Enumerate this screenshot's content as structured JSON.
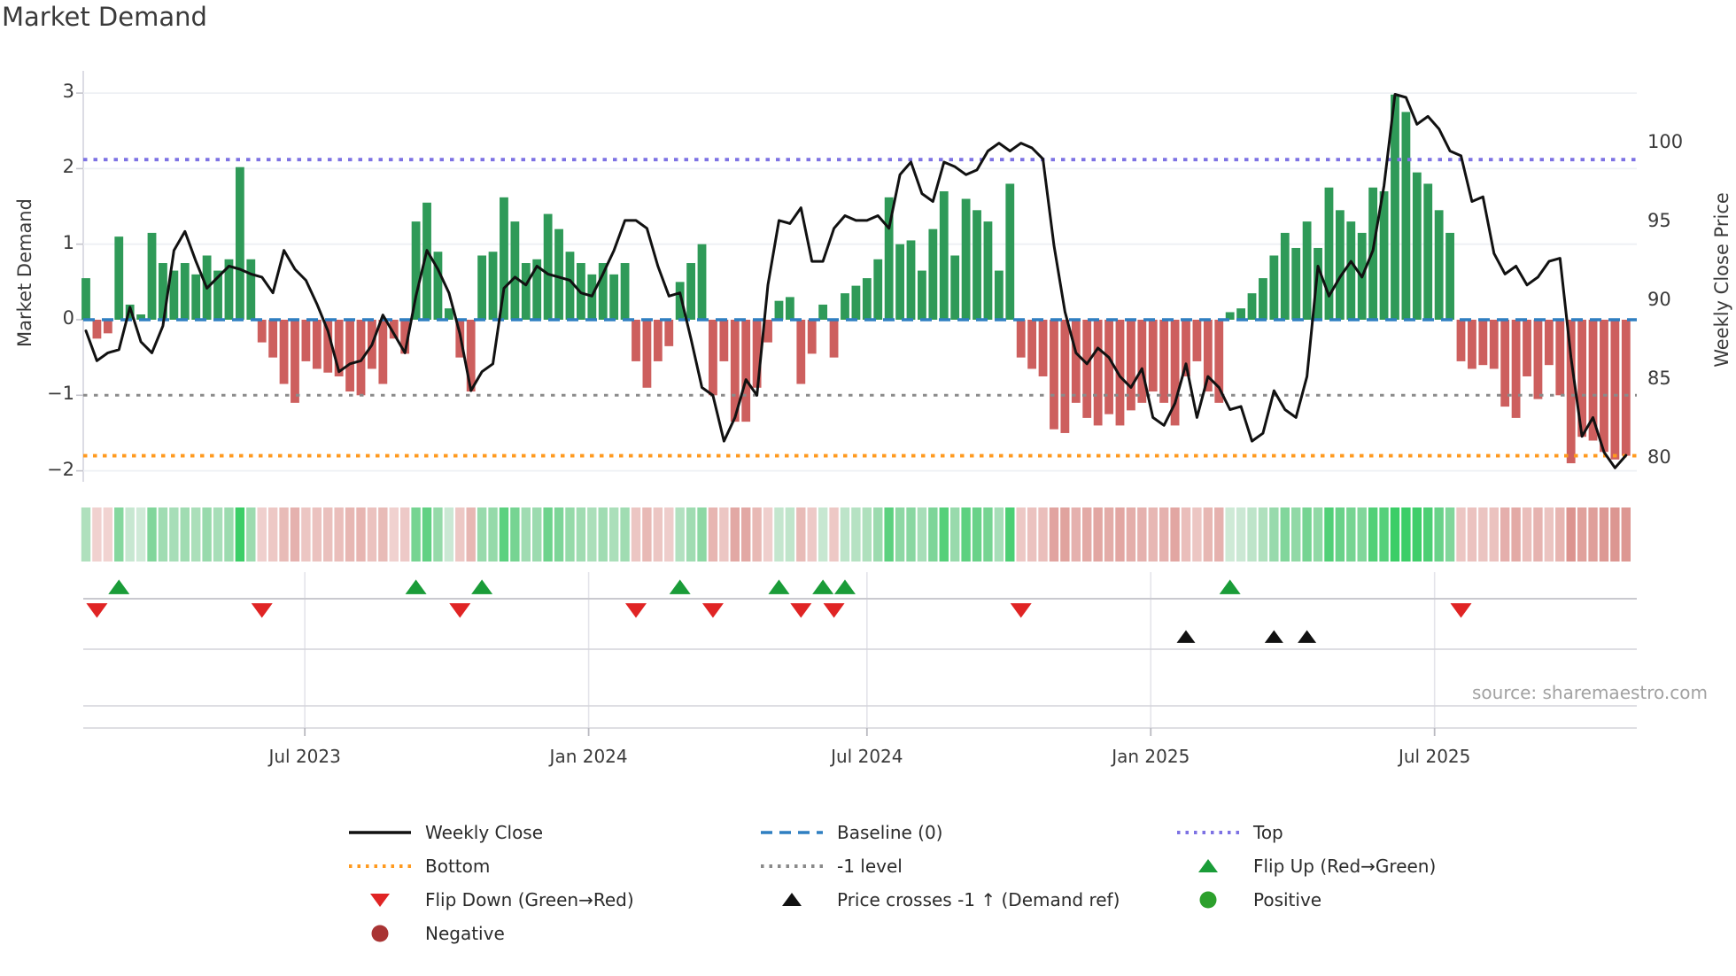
{
  "title": "Market Demand",
  "source": "source: sharemaestro.com",
  "axes": {
    "left": {
      "label": "Market Demand",
      "ticks": [
        {
          "label": "3",
          "value": 3
        },
        {
          "label": "2",
          "value": 2
        },
        {
          "label": "1",
          "value": 1
        },
        {
          "label": "0",
          "value": 0
        },
        {
          "label": "−1",
          "value": -1
        },
        {
          "label": "−2",
          "value": -2
        }
      ]
    },
    "right": {
      "label": "Weekly Close Price",
      "ticks": [
        {
          "label": "100",
          "value": 100
        },
        {
          "label": "95",
          "value": 95
        },
        {
          "label": "90",
          "value": 90
        },
        {
          "label": "85",
          "value": 85
        },
        {
          "label": "80",
          "value": 80
        }
      ]
    },
    "x_ticks": [
      {
        "label": "Jul 2023",
        "week": 19.9
      },
      {
        "label": "Jan 2024",
        "week": 45.7
      },
      {
        "label": "Jul 2024",
        "week": 71.0
      },
      {
        "label": "Jan 2025",
        "week": 96.8
      },
      {
        "label": "Jul 2025",
        "week": 122.6
      }
    ]
  },
  "colors": {
    "bar_green": "#2f9a58",
    "bar_red": "#cd5f5e",
    "price_line": "#111111",
    "baseline": "#2f7fc1",
    "top": "#7d72e3",
    "bottom": "#ff9a1f",
    "minus1": "#8a8a8a",
    "flip_up": "#1a9c38",
    "flip_down": "#e02424",
    "price_cross": "#111111",
    "positive": "#2ca02c",
    "negative": "#a93434",
    "grid": "#eef0f4",
    "panel_line": "#d3d3da"
  },
  "chart_data": {
    "type": "combo_bar_line",
    "x_unit": "week",
    "n_weeks": 141,
    "levels": {
      "top": 2.12,
      "baseline": 0,
      "minus1": -1,
      "bottom": -1.8
    },
    "ylim_left": [
      -2.15,
      3.3
    ],
    "ylim_right": [
      78.5,
      104.5
    ],
    "demand": {
      "name": "Market Demand",
      "values": [
        0.55,
        -0.25,
        -0.18,
        1.1,
        0.2,
        0.07,
        1.15,
        0.75,
        0.65,
        0.75,
        0.6,
        0.85,
        0.65,
        0.8,
        2.02,
        0.8,
        -0.3,
        -0.5,
        -0.85,
        -1.1,
        -0.55,
        -0.65,
        -0.7,
        -0.75,
        -0.95,
        -1.0,
        -0.65,
        -0.85,
        -0.25,
        -0.45,
        1.3,
        1.55,
        0.9,
        0.15,
        -0.5,
        -0.95,
        0.85,
        0.9,
        1.62,
        1.3,
        0.75,
        0.8,
        1.4,
        1.2,
        0.9,
        0.75,
        0.6,
        0.75,
        0.6,
        0.75,
        -0.55,
        -0.9,
        -0.55,
        -0.35,
        0.5,
        0.75,
        1.0,
        -1.0,
        -0.55,
        -1.35,
        -1.35,
        -0.9,
        -0.3,
        0.25,
        0.3,
        -0.85,
        -0.45,
        0.2,
        -0.5,
        0.35,
        0.45,
        0.55,
        0.8,
        1.62,
        1.0,
        1.05,
        0.65,
        1.2,
        1.7,
        0.85,
        1.6,
        1.45,
        1.3,
        0.65,
        1.8,
        -0.5,
        -0.65,
        -0.75,
        -1.45,
        -1.5,
        -1.1,
        -1.3,
        -1.4,
        -1.25,
        -1.4,
        -1.2,
        -1.1,
        -0.95,
        -1.1,
        -1.4,
        -0.75,
        -0.55,
        -0.95,
        -1.1,
        0.1,
        0.15,
        0.35,
        0.55,
        0.85,
        1.15,
        0.95,
        1.3,
        0.95,
        1.75,
        1.45,
        1.3,
        1.15,
        1.75,
        1.7,
        2.98,
        2.75,
        1.95,
        1.8,
        1.45,
        1.15,
        -0.55,
        -0.65,
        -0.6,
        -0.65,
        -1.15,
        -1.3,
        -0.75,
        -1.05,
        -0.6,
        -1.0,
        -1.9,
        -1.55,
        -1.6,
        -1.75,
        -1.85,
        -1.8
      ]
    },
    "price": {
      "name": "Weekly Close",
      "values": [
        88.1,
        86.2,
        86.7,
        86.9,
        89.6,
        87.4,
        86.7,
        88.4,
        93.2,
        94.4,
        92.5,
        90.8,
        91.5,
        92.2,
        92.0,
        91.7,
        91.5,
        90.5,
        93.2,
        92.0,
        91.3,
        89.8,
        88.1,
        85.5,
        86.0,
        86.2,
        87.2,
        89.1,
        87.9,
        86.7,
        90.3,
        93.2,
        92.0,
        90.5,
        87.9,
        84.3,
        85.5,
        86.0,
        90.8,
        91.5,
        91.0,
        92.2,
        91.7,
        91.5,
        91.3,
        90.5,
        90.3,
        91.7,
        93.2,
        95.1,
        95.1,
        94.6,
        92.2,
        90.3,
        90.5,
        87.6,
        84.5,
        84.0,
        81.1,
        82.6,
        85.0,
        84.0,
        91.0,
        95.1,
        94.9,
        95.9,
        92.5,
        92.5,
        94.6,
        95.4,
        95.1,
        95.1,
        95.4,
        94.6,
        98.0,
        98.8,
        96.8,
        96.3,
        98.8,
        98.5,
        98.0,
        98.3,
        99.5,
        100.0,
        99.5,
        100.0,
        99.7,
        99.0,
        93.5,
        89.3,
        86.7,
        86.0,
        87.0,
        86.4,
        85.2,
        84.5,
        85.7,
        82.6,
        82.1,
        83.5,
        86.0,
        82.6,
        85.2,
        84.5,
        83.1,
        83.3,
        81.1,
        81.6,
        84.3,
        83.1,
        82.6,
        85.2,
        92.2,
        90.3,
        91.5,
        92.5,
        91.5,
        93.2,
        97.3,
        103.1,
        102.9,
        101.2,
        101.7,
        100.9,
        99.5,
        99.2,
        96.3,
        96.6,
        93.0,
        91.7,
        92.2,
        91.0,
        91.5,
        92.5,
        92.7,
        86.4,
        81.4,
        82.6,
        80.4,
        79.4,
        80.2
      ]
    },
    "markers": {
      "flip_up_weeks": [
        3,
        30,
        36,
        54,
        63,
        67,
        69,
        104
      ],
      "flip_down_weeks": [
        1,
        16,
        34,
        50,
        57,
        65,
        68,
        85,
        125
      ],
      "price_cross_weeks": [
        100,
        108,
        111
      ]
    },
    "heatmap": {
      "note": "weekly demand sign/intensity strip",
      "source_series": "demand"
    }
  },
  "legend": {
    "items": [
      {
        "row": 0,
        "col": 0,
        "type": "line",
        "color": "#111111",
        "label": "Weekly Close"
      },
      {
        "row": 0,
        "col": 1,
        "type": "dashed",
        "color": "#2f7fc1",
        "label": "Baseline (0)"
      },
      {
        "row": 0,
        "col": 2,
        "type": "dotted",
        "color": "#7d72e3",
        "label": "Top"
      },
      {
        "row": 1,
        "col": 0,
        "type": "dotted",
        "color": "#ff9a1f",
        "label": "Bottom"
      },
      {
        "row": 1,
        "col": 1,
        "type": "dotted",
        "color": "#8a8a8a",
        "label": "-1 level"
      },
      {
        "row": 1,
        "col": 2,
        "type": "tri-up",
        "color": "#1a9c38",
        "label": "Flip Up (Red→Green)"
      },
      {
        "row": 2,
        "col": 0,
        "type": "tri-down",
        "color": "#e02424",
        "label": "Flip Down (Green→Red)"
      },
      {
        "row": 2,
        "col": 1,
        "type": "tri-up",
        "color": "#111111",
        "label": "Price crosses -1 ↑ (Demand ref)"
      },
      {
        "row": 2,
        "col": 2,
        "type": "circle",
        "color": "#2ca02c",
        "label": "Positive"
      },
      {
        "row": 3,
        "col": 0,
        "type": "circle",
        "color": "#a93434",
        "label": "Negative"
      }
    ]
  }
}
